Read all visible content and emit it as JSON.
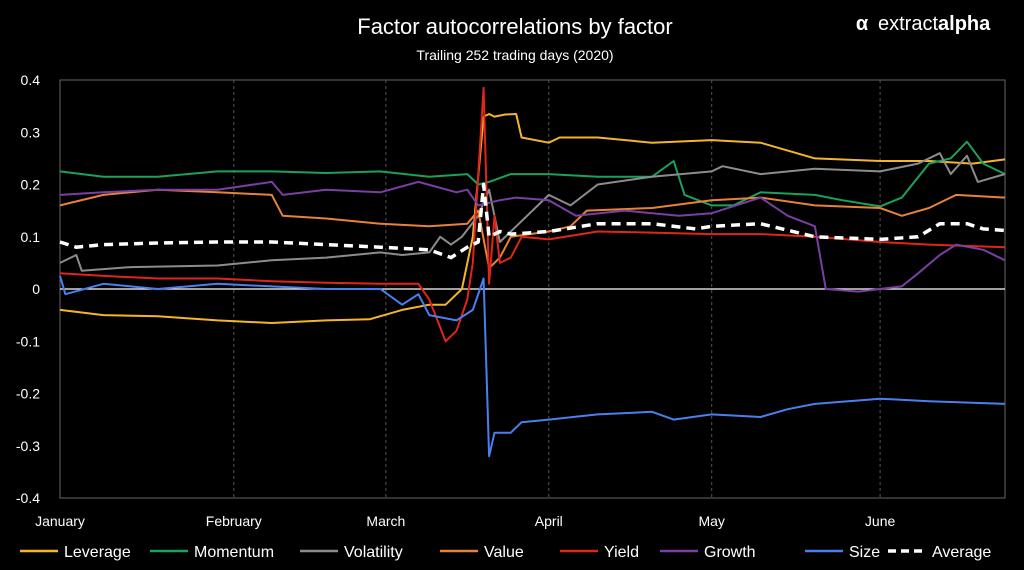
{
  "brand": {
    "name_light": "extract",
    "name_bold": "alpha",
    "symbol": "α"
  },
  "chart_data": {
    "type": "line",
    "title": "Factor autocorrelations by factor",
    "subtitle": "Trailing 252 trading days (2020)",
    "xlabel": "",
    "ylabel": "",
    "ylim": [
      -0.4,
      0.4
    ],
    "y_ticks": [
      0.4,
      0.3,
      0.2,
      0.1,
      0,
      -0.1,
      -0.2,
      -0.3,
      -0.4
    ],
    "y_tick_labels": [
      "0.4",
      "0.3",
      "0.2",
      "0.1",
      "0",
      "-0.1",
      "-0.2",
      "-0.3",
      "-0.4"
    ],
    "x_range": [
      "2020-01-02",
      "2020-06-24"
    ],
    "x_ticks": [
      "2020-01-02",
      "2020-02-03",
      "2020-03-02",
      "2020-04-01",
      "2020-05-01",
      "2020-06-01"
    ],
    "x_tick_labels": [
      "January",
      "February",
      "March",
      "April",
      "May",
      "June"
    ],
    "grid": "vertical dashed at month starts",
    "legend_position": "bottom",
    "series": [
      {
        "name": "Leverage",
        "color": "#f5b52b",
        "dashed": false,
        "points": [
          [
            "2020-01-02",
            -0.04
          ],
          [
            "2020-01-10",
            -0.05
          ],
          [
            "2020-01-20",
            -0.052
          ],
          [
            "2020-01-31",
            -0.06
          ],
          [
            "2020-02-10",
            -0.065
          ],
          [
            "2020-02-20",
            -0.06
          ],
          [
            "2020-02-28",
            -0.058
          ],
          [
            "2020-03-05",
            -0.04
          ],
          [
            "2020-03-10",
            -0.03
          ],
          [
            "2020-03-13",
            -0.03
          ],
          [
            "2020-03-16",
            0.0
          ],
          [
            "2020-03-18",
            0.1
          ],
          [
            "2020-03-20",
            0.33
          ],
          [
            "2020-03-21",
            0.335
          ],
          [
            "2020-03-22",
            0.33
          ],
          [
            "2020-03-24",
            0.334
          ],
          [
            "2020-03-26",
            0.335
          ],
          [
            "2020-03-27",
            0.29
          ],
          [
            "2020-04-01",
            0.28
          ],
          [
            "2020-04-03",
            0.29
          ],
          [
            "2020-04-10",
            0.29
          ],
          [
            "2020-04-20",
            0.28
          ],
          [
            "2020-05-01",
            0.285
          ],
          [
            "2020-05-10",
            0.28
          ],
          [
            "2020-05-20",
            0.25
          ],
          [
            "2020-06-01",
            0.245
          ],
          [
            "2020-06-10",
            0.245
          ],
          [
            "2020-06-18",
            0.24
          ],
          [
            "2020-06-24",
            0.248
          ]
        ]
      },
      {
        "name": "Momentum",
        "color": "#1aa25a",
        "dashed": false,
        "points": [
          [
            "2020-01-02",
            0.225
          ],
          [
            "2020-01-10",
            0.215
          ],
          [
            "2020-01-20",
            0.215
          ],
          [
            "2020-01-31",
            0.225
          ],
          [
            "2020-02-10",
            0.225
          ],
          [
            "2020-02-20",
            0.222
          ],
          [
            "2020-03-01",
            0.225
          ],
          [
            "2020-03-10",
            0.215
          ],
          [
            "2020-03-17",
            0.22
          ],
          [
            "2020-03-19",
            0.2
          ],
          [
            "2020-03-21",
            0.205
          ],
          [
            "2020-03-25",
            0.22
          ],
          [
            "2020-04-01",
            0.22
          ],
          [
            "2020-04-10",
            0.215
          ],
          [
            "2020-04-20",
            0.215
          ],
          [
            "2020-04-24",
            0.245
          ],
          [
            "2020-04-26",
            0.18
          ],
          [
            "2020-05-01",
            0.16
          ],
          [
            "2020-05-05",
            0.16
          ],
          [
            "2020-05-10",
            0.185
          ],
          [
            "2020-05-20",
            0.18
          ],
          [
            "2020-05-25",
            0.17
          ],
          [
            "2020-06-01",
            0.158
          ],
          [
            "2020-06-05",
            0.175
          ],
          [
            "2020-06-10",
            0.24
          ],
          [
            "2020-06-14",
            0.25
          ],
          [
            "2020-06-17",
            0.282
          ],
          [
            "2020-06-20",
            0.24
          ],
          [
            "2020-06-24",
            0.22
          ]
        ]
      },
      {
        "name": "Volatility",
        "color": "#8c8c8c",
        "dashed": false,
        "points": [
          [
            "2020-01-02",
            0.05
          ],
          [
            "2020-01-05",
            0.065
          ],
          [
            "2020-01-06",
            0.035
          ],
          [
            "2020-01-15",
            0.042
          ],
          [
            "2020-01-31",
            0.045
          ],
          [
            "2020-02-10",
            0.055
          ],
          [
            "2020-02-20",
            0.06
          ],
          [
            "2020-03-01",
            0.07
          ],
          [
            "2020-03-05",
            0.065
          ],
          [
            "2020-03-10",
            0.07
          ],
          [
            "2020-03-12",
            0.1
          ],
          [
            "2020-03-14",
            0.085
          ],
          [
            "2020-03-16",
            0.1
          ],
          [
            "2020-03-19",
            0.14
          ],
          [
            "2020-03-21",
            0.19
          ],
          [
            "2020-03-23",
            0.09
          ],
          [
            "2020-03-26",
            0.12
          ],
          [
            "2020-04-01",
            0.18
          ],
          [
            "2020-04-05",
            0.16
          ],
          [
            "2020-04-10",
            0.2
          ],
          [
            "2020-04-20",
            0.215
          ],
          [
            "2020-05-01",
            0.225
          ],
          [
            "2020-05-03",
            0.235
          ],
          [
            "2020-05-10",
            0.22
          ],
          [
            "2020-05-20",
            0.23
          ],
          [
            "2020-06-01",
            0.225
          ],
          [
            "2020-06-08",
            0.24
          ],
          [
            "2020-06-12",
            0.26
          ],
          [
            "2020-06-14",
            0.22
          ],
          [
            "2020-06-17",
            0.255
          ],
          [
            "2020-06-19",
            0.205
          ],
          [
            "2020-06-24",
            0.22
          ]
        ]
      },
      {
        "name": "Value",
        "color": "#e8813a",
        "dashed": false,
        "points": [
          [
            "2020-01-02",
            0.16
          ],
          [
            "2020-01-10",
            0.18
          ],
          [
            "2020-01-20",
            0.19
          ],
          [
            "2020-01-31",
            0.185
          ],
          [
            "2020-02-10",
            0.18
          ],
          [
            "2020-02-12",
            0.14
          ],
          [
            "2020-02-20",
            0.135
          ],
          [
            "2020-03-01",
            0.125
          ],
          [
            "2020-03-10",
            0.12
          ],
          [
            "2020-03-17",
            0.125
          ],
          [
            "2020-03-19",
            0.15
          ],
          [
            "2020-03-21",
            0.04
          ],
          [
            "2020-03-23",
            0.06
          ],
          [
            "2020-03-25",
            0.1
          ],
          [
            "2020-04-01",
            0.11
          ],
          [
            "2020-04-05",
            0.12
          ],
          [
            "2020-04-08",
            0.15
          ],
          [
            "2020-04-20",
            0.155
          ],
          [
            "2020-05-01",
            0.17
          ],
          [
            "2020-05-10",
            0.175
          ],
          [
            "2020-05-20",
            0.16
          ],
          [
            "2020-06-01",
            0.155
          ],
          [
            "2020-06-05",
            0.14
          ],
          [
            "2020-06-10",
            0.155
          ],
          [
            "2020-06-15",
            0.18
          ],
          [
            "2020-06-24",
            0.175
          ]
        ]
      },
      {
        "name": "Yield",
        "color": "#e0251b",
        "dashed": false,
        "points": [
          [
            "2020-01-02",
            0.03
          ],
          [
            "2020-01-10",
            0.025
          ],
          [
            "2020-01-20",
            0.02
          ],
          [
            "2020-01-31",
            0.02
          ],
          [
            "2020-02-10",
            0.015
          ],
          [
            "2020-02-20",
            0.012
          ],
          [
            "2020-03-01",
            0.01
          ],
          [
            "2020-03-08",
            0.01
          ],
          [
            "2020-03-10",
            -0.02
          ],
          [
            "2020-03-13",
            -0.1
          ],
          [
            "2020-03-15",
            -0.08
          ],
          [
            "2020-03-17",
            -0.02
          ],
          [
            "2020-03-18",
            0.05
          ],
          [
            "2020-03-20",
            0.385
          ],
          [
            "2020-03-21",
            0.01
          ],
          [
            "2020-03-22",
            0.14
          ],
          [
            "2020-03-23",
            0.05
          ],
          [
            "2020-03-25",
            0.06
          ],
          [
            "2020-03-27",
            0.1
          ],
          [
            "2020-04-01",
            0.095
          ],
          [
            "2020-04-10",
            0.11
          ],
          [
            "2020-04-20",
            0.108
          ],
          [
            "2020-05-01",
            0.105
          ],
          [
            "2020-05-10",
            0.105
          ],
          [
            "2020-05-20",
            0.1
          ],
          [
            "2020-06-01",
            0.09
          ],
          [
            "2020-06-10",
            0.085
          ],
          [
            "2020-06-24",
            0.08
          ]
        ]
      },
      {
        "name": "Growth",
        "color": "#7a3fa3",
        "dashed": false,
        "points": [
          [
            "2020-01-02",
            0.18
          ],
          [
            "2020-01-10",
            0.185
          ],
          [
            "2020-01-20",
            0.19
          ],
          [
            "2020-01-31",
            0.19
          ],
          [
            "2020-02-10",
            0.205
          ],
          [
            "2020-02-12",
            0.18
          ],
          [
            "2020-02-20",
            0.19
          ],
          [
            "2020-03-01",
            0.185
          ],
          [
            "2020-03-08",
            0.205
          ],
          [
            "2020-03-15",
            0.185
          ],
          [
            "2020-03-17",
            0.19
          ],
          [
            "2020-03-19",
            0.16
          ],
          [
            "2020-03-23",
            0.17
          ],
          [
            "2020-03-26",
            0.175
          ],
          [
            "2020-04-01",
            0.17
          ],
          [
            "2020-04-06",
            0.14
          ],
          [
            "2020-04-15",
            0.15
          ],
          [
            "2020-04-25",
            0.14
          ],
          [
            "2020-05-01",
            0.145
          ],
          [
            "2020-05-10",
            0.175
          ],
          [
            "2020-05-15",
            0.14
          ],
          [
            "2020-05-20",
            0.12
          ],
          [
            "2020-05-22",
            0.0
          ],
          [
            "2020-05-28",
            -0.005
          ],
          [
            "2020-06-01",
            0.0
          ],
          [
            "2020-06-05",
            0.005
          ],
          [
            "2020-06-08",
            0.03
          ],
          [
            "2020-06-12",
            0.065
          ],
          [
            "2020-06-15",
            0.085
          ],
          [
            "2020-06-20",
            0.075
          ],
          [
            "2020-06-24",
            0.055
          ]
        ]
      },
      {
        "name": "Size",
        "color": "#4a7ff2",
        "dashed": false,
        "points": [
          [
            "2020-01-02",
            0.025
          ],
          [
            "2020-01-03",
            -0.01
          ],
          [
            "2020-01-10",
            0.01
          ],
          [
            "2020-01-20",
            0.0
          ],
          [
            "2020-01-31",
            0.01
          ],
          [
            "2020-02-10",
            0.005
          ],
          [
            "2020-02-20",
            0.0
          ],
          [
            "2020-03-01",
            0.0
          ],
          [
            "2020-03-05",
            -0.03
          ],
          [
            "2020-03-08",
            -0.01
          ],
          [
            "2020-03-10",
            -0.05
          ],
          [
            "2020-03-15",
            -0.06
          ],
          [
            "2020-03-18",
            -0.04
          ],
          [
            "2020-03-20",
            0.02
          ],
          [
            "2020-03-21",
            -0.32
          ],
          [
            "2020-03-22",
            -0.275
          ],
          [
            "2020-03-25",
            -0.275
          ],
          [
            "2020-03-27",
            -0.255
          ],
          [
            "2020-04-01",
            -0.25
          ],
          [
            "2020-04-10",
            -0.24
          ],
          [
            "2020-04-20",
            -0.235
          ],
          [
            "2020-04-24",
            -0.25
          ],
          [
            "2020-05-01",
            -0.24
          ],
          [
            "2020-05-10",
            -0.245
          ],
          [
            "2020-05-15",
            -0.23
          ],
          [
            "2020-05-20",
            -0.22
          ],
          [
            "2020-06-01",
            -0.21
          ],
          [
            "2020-06-10",
            -0.215
          ],
          [
            "2020-06-24",
            -0.22
          ]
        ]
      },
      {
        "name": "Average",
        "color": "#ffffff",
        "dashed": true,
        "points": [
          [
            "2020-01-02",
            0.09
          ],
          [
            "2020-01-05",
            0.08
          ],
          [
            "2020-01-10",
            0.085
          ],
          [
            "2020-01-20",
            0.088
          ],
          [
            "2020-01-31",
            0.09
          ],
          [
            "2020-02-10",
            0.09
          ],
          [
            "2020-02-20",
            0.085
          ],
          [
            "2020-03-01",
            0.08
          ],
          [
            "2020-03-10",
            0.075
          ],
          [
            "2020-03-14",
            0.06
          ],
          [
            "2020-03-17",
            0.08
          ],
          [
            "2020-03-19",
            0.09
          ],
          [
            "2020-03-20",
            0.2
          ],
          [
            "2020-03-21",
            0.1
          ],
          [
            "2020-03-23",
            0.11
          ],
          [
            "2020-03-25",
            0.105
          ],
          [
            "2020-04-01",
            0.11
          ],
          [
            "2020-04-10",
            0.125
          ],
          [
            "2020-04-20",
            0.125
          ],
          [
            "2020-04-28",
            0.115
          ],
          [
            "2020-05-01",
            0.12
          ],
          [
            "2020-05-10",
            0.125
          ],
          [
            "2020-05-20",
            0.1
          ],
          [
            "2020-06-01",
            0.095
          ],
          [
            "2020-06-08",
            0.1
          ],
          [
            "2020-06-12",
            0.125
          ],
          [
            "2020-06-17",
            0.125
          ],
          [
            "2020-06-20",
            0.115
          ],
          [
            "2020-06-24",
            0.112
          ]
        ]
      }
    ]
  }
}
